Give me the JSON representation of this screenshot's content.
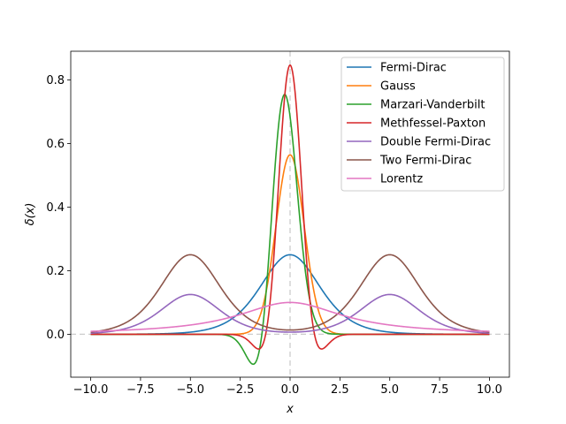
{
  "chart_data": {
    "type": "line",
    "title": "",
    "xlabel": "x",
    "ylabel": "δ(x)",
    "xlim": [
      -11.0,
      11.0
    ],
    "ylim": [
      -0.135,
      0.89
    ],
    "xticks": [
      -10.0,
      -7.5,
      -5.0,
      -2.5,
      0.0,
      2.5,
      5.0,
      7.5,
      10.0
    ],
    "xtick_labels": [
      "−10.0",
      "−7.5",
      "−5.0",
      "−2.5",
      "0.0",
      "2.5",
      "5.0",
      "7.5",
      "10.0"
    ],
    "yticks": [
      0.0,
      0.2,
      0.4,
      0.6,
      0.8
    ],
    "ytick_labels": [
      "0.0",
      "0.2",
      "0.4",
      "0.6",
      "0.8"
    ],
    "reference_lines": [
      {
        "orientation": "vertical",
        "value": 0,
        "style": "dashed",
        "color": "#cccccc"
      },
      {
        "orientation": "horizontal",
        "value": 0,
        "style": "dashed",
        "color": "#cccccc"
      }
    ],
    "legend_position": "top-right",
    "x_range": [
      -10,
      10
    ],
    "series": [
      {
        "name": "Fermi-Dirac",
        "color": "#1f77b4",
        "kind": "fermi_dirac",
        "params": {
          "sigma": 1.0
        },
        "peak": 0.25
      },
      {
        "name": "Gauss",
        "color": "#ff7f0e",
        "kind": "gauss",
        "params": {
          "sigma": 1.0
        },
        "peak": 0.564
      },
      {
        "name": "Marzari-Vanderbilt",
        "color": "#2ca02c",
        "kind": "marzari_vanderbilt",
        "params": {
          "sigma": 1.0
        },
        "peak": 0.752
      },
      {
        "name": "Methfessel-Paxton",
        "color": "#d62728",
        "kind": "methfessel_paxton",
        "params": {
          "sigma": 1.0
        },
        "peak": 0.846
      },
      {
        "name": "Double Fermi-Dirac",
        "color": "#9467bd",
        "kind": "double_fermi_dirac",
        "params": {
          "sigma": 1.0,
          "shift": 5.0
        },
        "peak": 0.125
      },
      {
        "name": "Two Fermi-Dirac",
        "color": "#8c564b",
        "kind": "two_fermi_dirac",
        "params": {
          "sigma": 1.0,
          "shift": 5.0
        },
        "peak": 0.25
      },
      {
        "name": "Lorentz",
        "color": "#e377c2",
        "kind": "lorentz",
        "params": {
          "gamma": 3.2
        },
        "peak": 0.1
      }
    ]
  }
}
